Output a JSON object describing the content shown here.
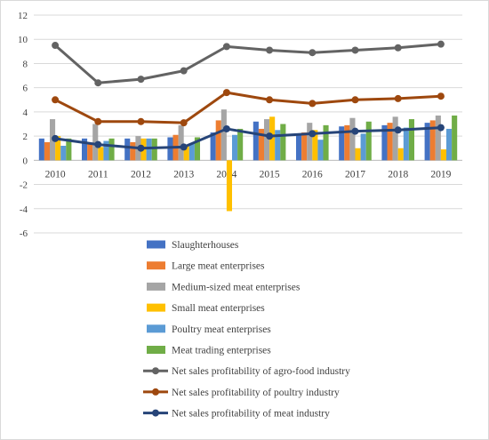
{
  "chart_data": {
    "type": "bar",
    "categories": [
      "2010",
      "2011",
      "2012",
      "2013",
      "2014",
      "2015",
      "2016",
      "2017",
      "2018",
      "2019"
    ],
    "ylim": [
      -6,
      12
    ],
    "yticks": [
      "12",
      "10",
      "8",
      "6",
      "4",
      "2",
      "0",
      "-2",
      "-4",
      "-6"
    ],
    "grid": true,
    "legend_position": "bottom",
    "title": "",
    "xlabel": "",
    "ylabel": "",
    "series": [
      {
        "name": "Slaughterhouses",
        "kind": "bar",
        "color": "#4472C4",
        "values": [
          1.8,
          1.8,
          1.8,
          1.9,
          2.3,
          3.2,
          2.2,
          2.8,
          2.9,
          3.1
        ]
      },
      {
        "name": "Large meat enterprises",
        "kind": "bar",
        "color": "#ED7D31",
        "values": [
          1.5,
          1.4,
          1.5,
          2.1,
          3.3,
          2.6,
          2.3,
          2.9,
          3.1,
          3.3
        ]
      },
      {
        "name": "Medium-sized meat enterprises",
        "kind": "bar",
        "color": "#A5A5A5",
        "values": [
          3.4,
          3.0,
          2.0,
          2.9,
          4.2,
          3.4,
          3.1,
          3.5,
          3.6,
          3.7
        ]
      },
      {
        "name": "Small meat enterprises",
        "kind": "bar",
        "color": "#FFC000",
        "values": [
          2.0,
          1.1,
          1.8,
          1.2,
          -4.2,
          3.6,
          2.5,
          1.0,
          1.0,
          0.9
        ]
      },
      {
        "name": "Poultry meat enterprises",
        "kind": "bar",
        "color": "#5B9BD5",
        "values": [
          1.2,
          1.6,
          1.8,
          1.4,
          2.1,
          2.5,
          1.7,
          2.2,
          2.7,
          2.6
        ]
      },
      {
        "name": "Meat trading enterprises",
        "kind": "bar",
        "color": "#70AD47",
        "values": [
          1.8,
          1.8,
          1.8,
          1.9,
          2.6,
          3.0,
          2.9,
          3.2,
          3.4,
          3.7
        ]
      },
      {
        "name": "Net sales profitability of agro-food industry",
        "kind": "line",
        "color": "#636363",
        "values": [
          9.5,
          6.4,
          6.7,
          7.4,
          9.4,
          9.1,
          8.9,
          9.1,
          9.3,
          9.6
        ]
      },
      {
        "name": "Net sales profitability of poultry industry",
        "kind": "line",
        "color": "#9E480E",
        "values": [
          5.0,
          3.2,
          3.2,
          3.1,
          5.6,
          5.0,
          4.7,
          5.0,
          5.1,
          5.3
        ]
      },
      {
        "name": "Net sales profitability of meat industry",
        "kind": "line",
        "color": "#264478",
        "values": [
          1.8,
          1.3,
          1.0,
          1.1,
          2.6,
          2.0,
          2.2,
          2.4,
          2.5,
          2.7
        ]
      }
    ]
  }
}
